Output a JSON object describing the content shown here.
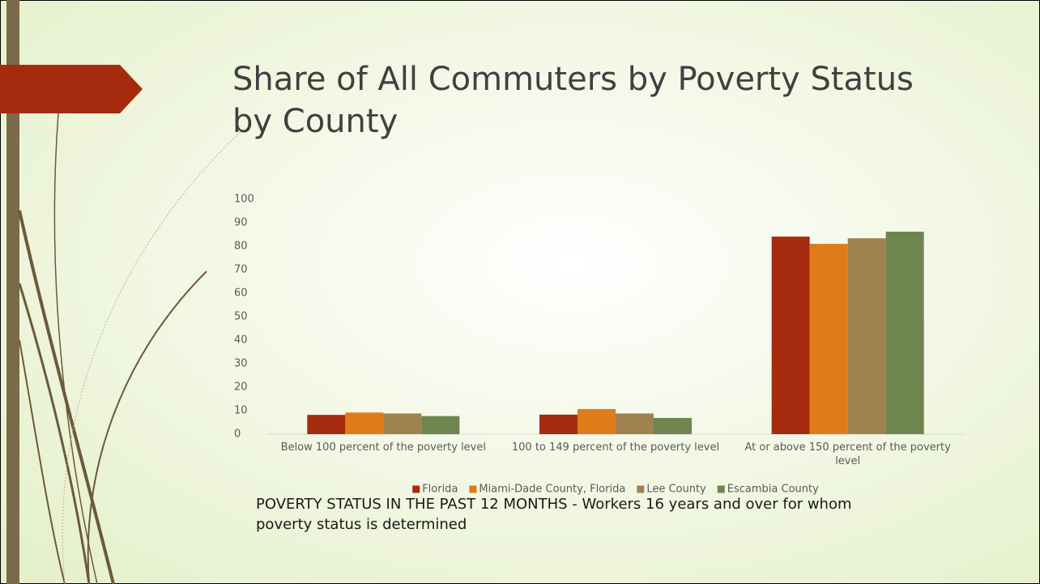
{
  "chart_data": {
    "type": "bar",
    "title": "Share of All Commuters by Poverty Status by County",
    "categories": [
      "Below 100 percent of the poverty level",
      "100 to 149 percent of the poverty level",
      "At or above 150 percent of the poverty level"
    ],
    "series": [
      {
        "name": "Florida",
        "color": "#a52a0e",
        "values": [
          8.2,
          8.3,
          84.1
        ]
      },
      {
        "name": "Miami-Dade County, Florida",
        "color": "#e07b1a",
        "values": [
          9.2,
          10.7,
          81
        ]
      },
      {
        "name": "Lee County",
        "color": "#a0824f",
        "values": [
          8.8,
          8.8,
          83.4
        ]
      },
      {
        "name": "Escambia County",
        "color": "#6e8550",
        "values": [
          7.7,
          6.9,
          86.2
        ]
      }
    ],
    "ylim": [
      0,
      100
    ],
    "yticks": [
      0,
      10,
      20,
      30,
      40,
      50,
      60,
      70,
      80,
      90,
      100
    ],
    "grid": false,
    "legend": "bottom",
    "note": "POVERTY STATUS IN THE PAST 12 MONTHS - Workers 16 years and over for whom poverty status is determined"
  }
}
